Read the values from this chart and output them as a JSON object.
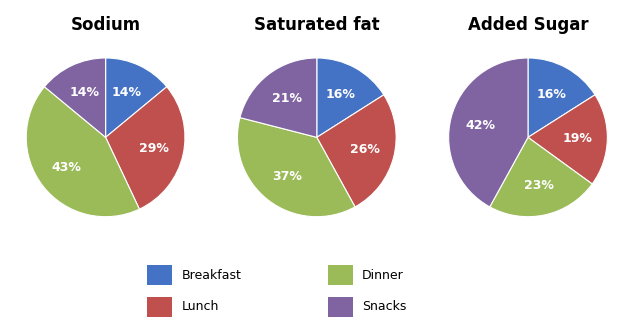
{
  "charts": [
    {
      "title": "Sodium",
      "values": [
        14,
        29,
        43,
        14
      ],
      "labels": [
        "14%",
        "29%",
        "43%",
        "14%"
      ],
      "order": [
        "Breakfast",
        "Lunch",
        "Dinner",
        "Snacks"
      ]
    },
    {
      "title": "Saturated fat",
      "values": [
        16,
        26,
        37,
        21
      ],
      "labels": [
        "16%",
        "26%",
        "37%",
        "21%"
      ],
      "order": [
        "Breakfast",
        "Lunch",
        "Dinner",
        "Snacks"
      ]
    },
    {
      "title": "Added Sugar",
      "values": [
        16,
        19,
        23,
        42
      ],
      "labels": [
        "16%",
        "19%",
        "23%",
        "42%"
      ],
      "order": [
        "Breakfast",
        "Lunch",
        "Dinner",
        "Snacks"
      ]
    }
  ],
  "colors": {
    "Breakfast": "#4472C4",
    "Lunch": "#C0504D",
    "Dinner": "#9BBB59",
    "Snacks": "#8064A2"
  },
  "background_color": "#FFFFFF",
  "title_fontsize": 12,
  "label_fontsize": 9,
  "startangle": 90,
  "legend_entries": [
    [
      "Breakfast",
      "Dinner"
    ],
    [
      "Lunch",
      "Snacks"
    ]
  ]
}
